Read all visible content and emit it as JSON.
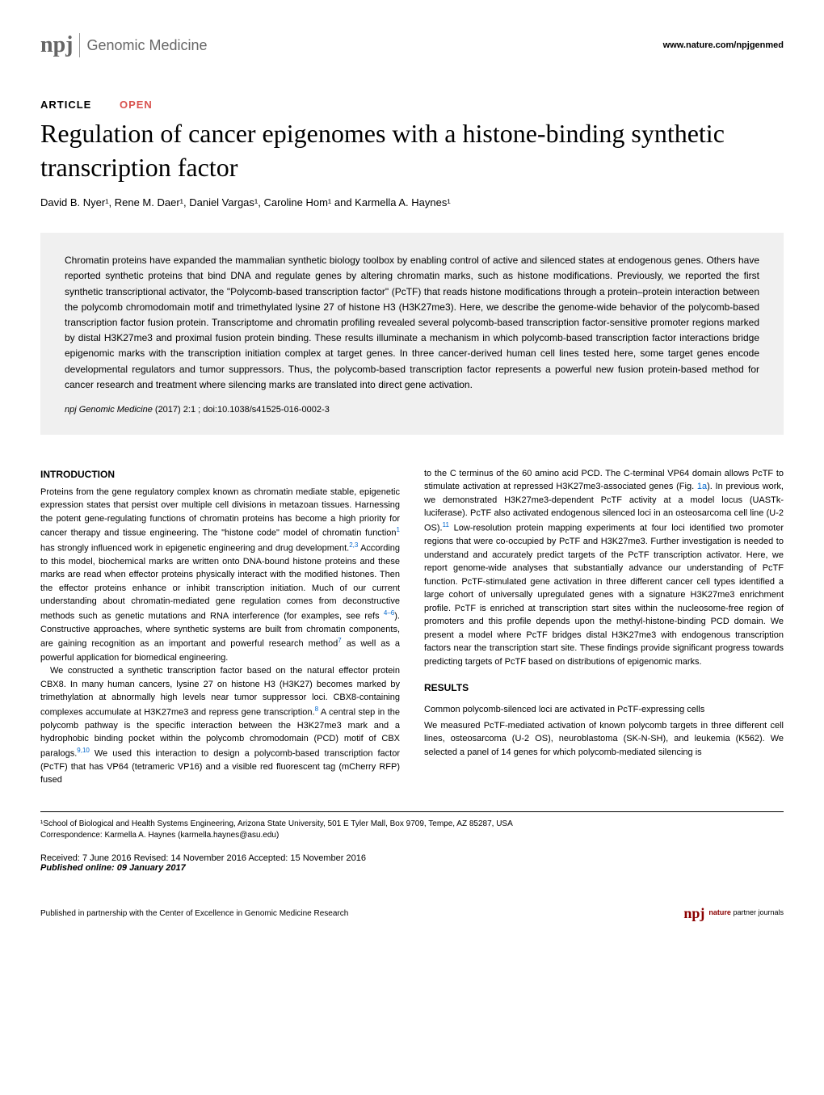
{
  "header": {
    "logo_npj": "npj",
    "logo_subtitle": "Genomic Medicine",
    "url": "www.nature.com/npjgenmed"
  },
  "article": {
    "type": "ARTICLE",
    "open_label": "OPEN",
    "title": "Regulation of cancer epigenomes with a histone-binding synthetic transcription factor",
    "authors": "David B. Nyer¹, Rene M. Daer¹, Daniel Vargas¹, Caroline Hom¹ and Karmella A. Haynes¹"
  },
  "abstract": {
    "text": "Chromatin proteins have expanded the mammalian synthetic biology toolbox by enabling control of active and silenced states at endogenous genes. Others have reported synthetic proteins that bind DNA and regulate genes by altering chromatin marks, such as histone modifications. Previously, we reported the first synthetic transcriptional activator, the \"Polycomb-based transcription factor\" (PcTF) that reads histone modifications through a protein–protein interaction between the polycomb chromodomain motif and trimethylated lysine 27 of histone H3 (H3K27me3). Here, we describe the genome-wide behavior of the polycomb-based transcription factor fusion protein. Transcriptome and chromatin profiling revealed several polycomb-based transcription factor-sensitive promoter regions marked by distal H3K27me3 and proximal fusion protein binding. These results illuminate a mechanism in which polycomb-based transcription factor interactions bridge epigenomic marks with the transcription initiation complex at target genes. In three cancer-derived human cell lines tested here, some target genes encode developmental regulators and tumor suppressors. Thus, the polycomb-based transcription factor represents a powerful new fusion protein-based method for cancer research and treatment where silencing marks are translated into direct gene activation.",
    "citation_journal": "npj Genomic Medicine",
    "citation_year": "(2017)",
    "citation_vol": "2:1 ;",
    "citation_doi": "doi:10.1038/s41525-016-0002-3"
  },
  "sections": {
    "introduction_heading": "INTRODUCTION",
    "intro_p1": "Proteins from the gene regulatory complex known as chromatin mediate stable, epigenetic expression states that persist over multiple cell divisions in metazoan tissues. Harnessing the potent gene-regulating functions of chromatin proteins has become a high priority for cancer therapy and tissue engineering. The \"histone code\" model of chromatin function",
    "intro_p1b": " has strongly influenced work in epigenetic engineering and drug development.",
    "intro_p1c": " According to this model, biochemical marks are written onto DNA-bound histone proteins and these marks are read when effector proteins physically interact with the modified histones. Then the effector proteins enhance or inhibit transcription initiation. Much of our current understanding about chromatin-mediated gene regulation comes from deconstructive methods such as genetic mutations and RNA interference (for examples, see refs ",
    "intro_p1d": "). Constructive approaches, where synthetic systems are built from chromatin components, are gaining recognition as an important and powerful research method",
    "intro_p1e": " as well as a powerful application for biomedical engineering.",
    "intro_p2a": "We constructed a synthetic transcription factor based on the natural effector protein CBX8. In many human cancers, lysine 27 on histone H3 (H3K27) becomes marked by trimethylation at abnormally high levels near tumor suppressor loci. CBX8-containing complexes accumulate at H3K27me3 and repress gene transcription.",
    "intro_p2b": " A central step in the polycomb pathway is the specific interaction between the H3K27me3 mark and a hydrophobic binding pocket within the polycomb chromodomain (PCD) motif of CBX paralogs.",
    "intro_p2c": " We used this interaction to design a polycomb-based transcription factor (PcTF) that has VP64 (tetrameric VP16) and a visible red fluorescent tag (mCherry RFP) fused",
    "col2_p1a": "to the C terminus of the 60 amino acid PCD. The C-terminal VP64 domain allows PcTF to stimulate activation at repressed H3K27me3-associated genes (Fig. ",
    "col2_p1b": "). In previous work, we demonstrated H3K27me3-dependent PcTF activity at a model locus (UASTk-luciferase). PcTF also activated endogenous silenced loci in an osteosarcoma cell line (U-2 OS).",
    "col2_p1c": " Low-resolution protein mapping experiments at four loci identified two promoter regions that were co-occupied by PcTF and H3K27me3. Further investigation is needed to understand and accurately predict targets of the PcTF transcription activator. Here, we report genome-wide analyses that substantially advance our understanding of PcTF function. PcTF-stimulated gene activation in three different cancer cell types identified a large cohort of universally upregulated genes with a signature H3K27me3 enrichment profile. PcTF is enriched at transcription start sites within the nucleosome-free region of promoters and this profile depends upon the methyl-histone-binding PCD domain. We present a model where PcTF bridges distal H3K27me3 with endogenous transcription factors near the transcription start site. These findings provide significant progress towards predicting targets of PcTF based on distributions of epigenomic marks.",
    "results_heading": "RESULTS",
    "results_sub": "Common polycomb-silenced loci are activated in PcTF-expressing cells",
    "results_p1": "We measured PcTF-mediated activation of known polycomb targets in three different cell lines, osteosarcoma (U-2 OS), neuroblastoma (SK-N-SH), and leukemia (K562). We selected a panel of 14 genes for which polycomb-mediated silencing is"
  },
  "refs": {
    "r1": "1",
    "r23": "2,3",
    "r46": "4–6",
    "r7": "7",
    "r8": "8",
    "r910": "9,10",
    "r11": "11",
    "fig1a": "1a"
  },
  "footer": {
    "affiliation": "¹School of Biological and Health Systems Engineering, Arizona State University, 501 E Tyler Mall, Box 9709, Tempe, AZ 85287, USA",
    "correspondence": "Correspondence: Karmella A. Haynes (karmella.haynes@asu.edu)",
    "received": "Received: 7 June 2016 Revised: 14 November 2016 Accepted: 15 November 2016",
    "published": "Published online: 09 January 2017",
    "partnership": "Published in partnership with the Center of Excellence in Genomic Medicine Research",
    "partner_npj": "npj",
    "partner_nature": "nature",
    "partner_text": "partner journals"
  },
  "colors": {
    "background": "#ffffff",
    "text": "#000000",
    "abstract_bg": "#f0f0f0",
    "link": "#0066cc",
    "open_red": "#d9534f",
    "logo_gray": "#666666",
    "nature_red": "#8b0000"
  }
}
